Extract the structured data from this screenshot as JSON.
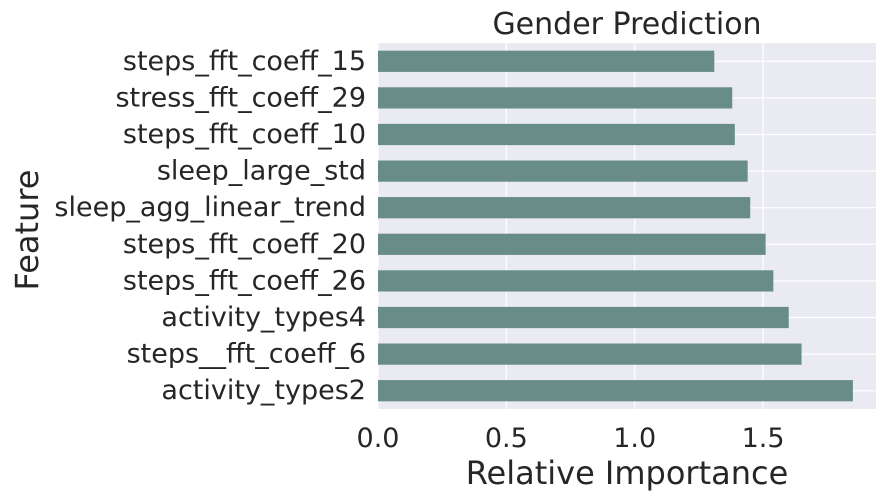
{
  "chart_data": {
    "type": "bar",
    "orientation": "horizontal",
    "title": "Gender Prediction",
    "xlabel": "Relative Importance",
    "ylabel": "Feature",
    "categories": [
      "steps_fft_coeff_15",
      "stress_fft_coeff_29",
      "steps_fft_coeff_10",
      "sleep_large_std",
      "sleep_agg_linear_trend",
      "steps_fft_coeff_20",
      "steps_fft_coeff_26",
      "activity_types4",
      "steps__fft_coeff_6",
      "activity_types2"
    ],
    "values": [
      1.31,
      1.38,
      1.39,
      1.44,
      1.45,
      1.51,
      1.54,
      1.6,
      1.65,
      1.85
    ],
    "xlim": [
      0,
      1.94
    ],
    "xticks": [
      0.0,
      0.5,
      1.0,
      1.5
    ],
    "xtick_labels": [
      "0.0",
      "0.5",
      "1.0",
      "1.5"
    ],
    "grid": true,
    "colors": {
      "bar": "#688c88",
      "plot_background": "#eaeaf2",
      "grid": "#ffffff",
      "text": "#262626"
    }
  }
}
